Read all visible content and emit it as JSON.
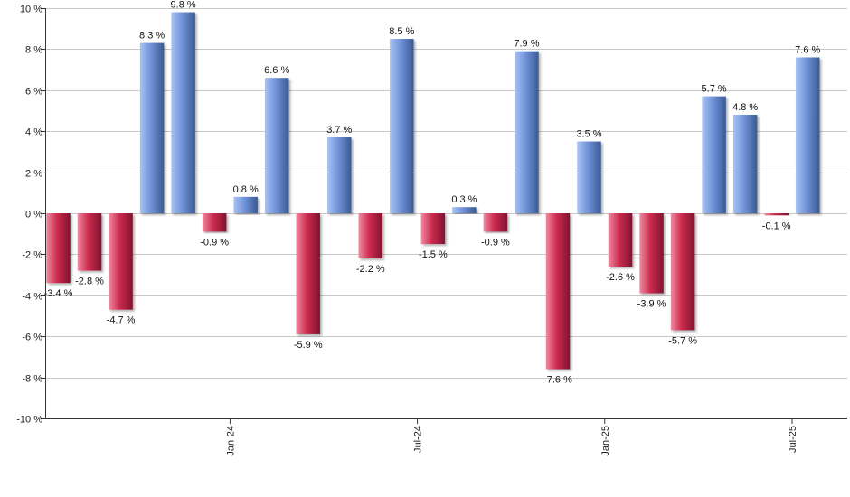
{
  "chart_data": {
    "type": "bar",
    "title": "",
    "xlabel": "",
    "ylabel": "",
    "ylim": [
      -10,
      10
    ],
    "y_ticks": [
      10,
      8,
      6,
      4,
      2,
      0,
      -2,
      -4,
      -6,
      -8,
      -10
    ],
    "y_tick_suffix": " %",
    "grid": true,
    "values": [
      -3.4,
      -2.8,
      -4.7,
      8.3,
      9.8,
      -0.9,
      0.8,
      6.6,
      -5.9,
      3.7,
      -2.2,
      8.5,
      -1.5,
      0.3,
      -0.9,
      7.9,
      -7.6,
      3.5,
      -2.6,
      -3.9,
      -5.7,
      5.7,
      4.8,
      -0.1,
      7.6
    ],
    "data_labels": [
      "-3.4 %",
      "-2.8 %",
      "-4.7 %",
      "8.3 %",
      "9.8 %",
      "-0.9 %",
      "0.8 %",
      "6.6 %",
      "-5.9 %",
      "3.7 %",
      "-2.2 %",
      "8.5 %",
      "-1.5 %",
      "0.3 %",
      "-0.9 %",
      "7.9 %",
      "-7.6 %",
      "3.5 %",
      "-2.6 %",
      "-3.9 %",
      "-5.7 %",
      "5.7 %",
      "4.8 %",
      "-0.1 %",
      "7.6 %"
    ],
    "x_ticks": [
      {
        "label": "Jan-24",
        "index": 5.5
      },
      {
        "label": "Jul-24",
        "index": 11.5
      },
      {
        "label": "Jan-25",
        "index": 17.5
      },
      {
        "label": "Jul-25",
        "index": 23.5
      }
    ],
    "colors": {
      "positive_light": "#a8c4f5",
      "positive_mid": "#7092d8",
      "positive_dark": "#3a5a93",
      "negative_light": "#f08aa0",
      "negative_mid": "#cc2b4f",
      "negative_dark": "#80142f",
      "grid": "#c8c8c8",
      "axis": "#333333"
    }
  }
}
